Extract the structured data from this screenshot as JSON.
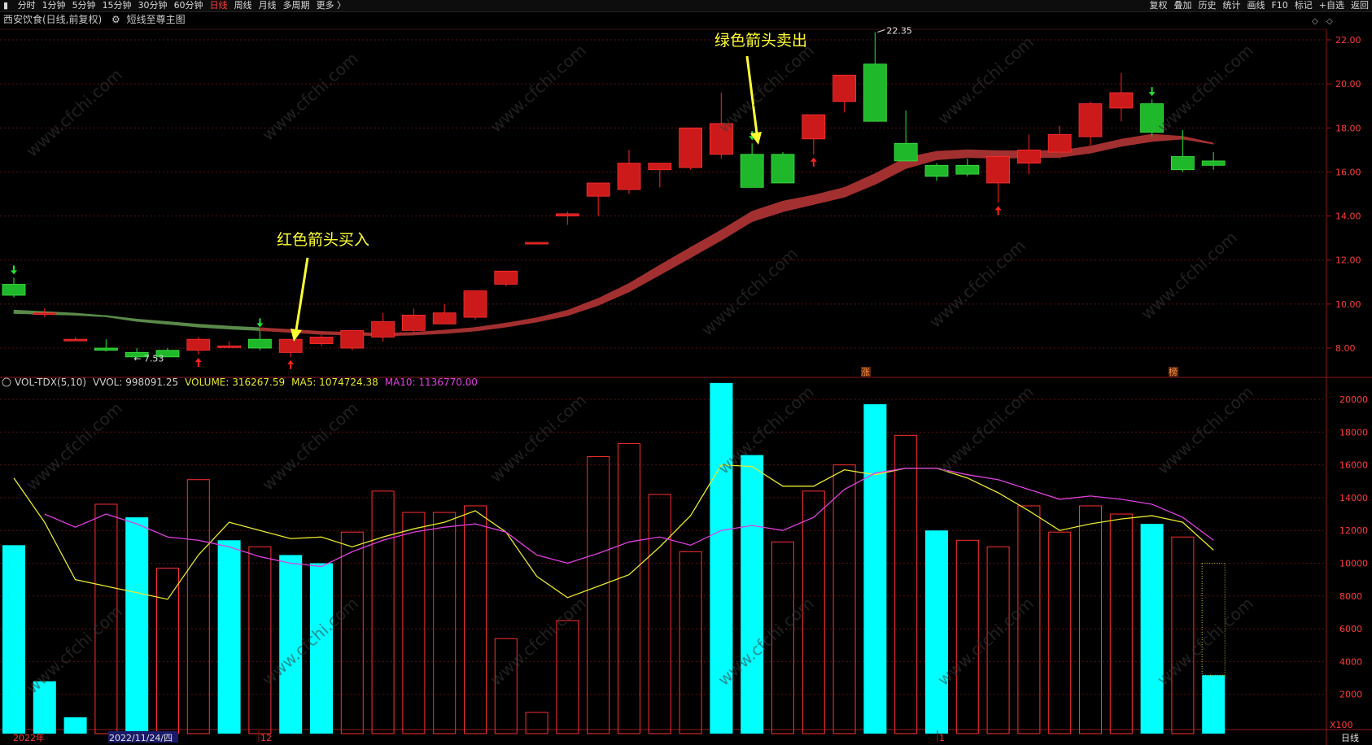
{
  "topbar": {
    "left_items": [
      "分时",
      "1分钟",
      "5分钟",
      "15分钟",
      "30分钟",
      "60分钟",
      "日线",
      "周线",
      "月线",
      "多周期",
      "更多 〉"
    ],
    "active": "日线",
    "right_items": [
      "复权",
      "叠加",
      "历史",
      "统计",
      "画线",
      "F10",
      "标记",
      "+自选",
      "返回"
    ]
  },
  "header": {
    "stock": "西安饮食(日线,前复权)",
    "indicator": "短线至尊主图"
  },
  "volume_header": {
    "name": "VOL-TDX(5,10)",
    "vvol": "VVOL: 998091.25",
    "volume": "VOLUME: 316267.59",
    "ma5": "MA5: 1074724.38",
    "ma10": "MA10: 1136770.00"
  },
  "annotations": {
    "sell": "绿色箭头卖出",
    "buy": "红色箭头买入",
    "high": "22.35",
    "low": "7.53",
    "zhang": "涨",
    "bang": "榜",
    "watermark": "www.cfchi.com"
  },
  "bottom": {
    "year": "2022年",
    "date": "2022/11/24/四",
    "month12": "12",
    "month1": "1",
    "x100": "X100",
    "period": "日线"
  },
  "colors": {
    "up": "#ff2a2a",
    "down": "#22c830",
    "vol_down": "#00ffff",
    "ma5": "#e8e830",
    "ma10": "#e040e0",
    "annotation": "#ffff33"
  },
  "chart_data": [
    {
      "type": "candlestick",
      "title": "西安饮食(日线,前复权)",
      "ylim": [
        7.0,
        22.6
      ],
      "y_ticks": [
        8.0,
        10.0,
        12.0,
        14.0,
        16.0,
        18.0,
        20.0,
        22.0
      ],
      "candles": [
        {
          "o": 10.9,
          "h": 11.2,
          "l": 10.3,
          "c": 10.4
        },
        {
          "o": 9.6,
          "h": 9.8,
          "l": 9.4,
          "c": 9.6
        },
        {
          "o": 8.4,
          "h": 8.5,
          "l": 8.35,
          "c": 8.4
        },
        {
          "o": 8.0,
          "h": 8.4,
          "l": 7.85,
          "c": 7.9
        },
        {
          "o": 7.8,
          "h": 8.0,
          "l": 7.53,
          "c": 7.6
        },
        {
          "o": 7.9,
          "h": 8.0,
          "l": 7.6,
          "c": 7.6
        },
        {
          "o": 7.9,
          "h": 8.5,
          "l": 7.7,
          "c": 8.4
        },
        {
          "o": 8.1,
          "h": 8.3,
          "l": 8.0,
          "c": 8.1
        },
        {
          "o": 8.4,
          "h": 8.8,
          "l": 7.9,
          "c": 8.0
        },
        {
          "o": 7.8,
          "h": 8.4,
          "l": 7.6,
          "c": 8.4
        },
        {
          "o": 8.2,
          "h": 8.6,
          "l": 8.1,
          "c": 8.5
        },
        {
          "o": 8.0,
          "h": 8.8,
          "l": 7.9,
          "c": 8.8
        },
        {
          "o": 8.5,
          "h": 9.6,
          "l": 8.3,
          "c": 9.2
        },
        {
          "o": 8.8,
          "h": 9.8,
          "l": 8.7,
          "c": 9.5
        },
        {
          "o": 9.1,
          "h": 10.0,
          "l": 9.1,
          "c": 9.6
        },
        {
          "o": 9.4,
          "h": 10.6,
          "l": 9.3,
          "c": 10.6
        },
        {
          "o": 10.9,
          "h": 11.5,
          "l": 10.8,
          "c": 11.5
        },
        {
          "o": 12.8,
          "h": 12.8,
          "l": 12.8,
          "c": 12.8
        },
        {
          "o": 14.0,
          "h": 14.2,
          "l": 13.6,
          "c": 14.1
        },
        {
          "o": 14.9,
          "h": 15.5,
          "l": 14.0,
          "c": 15.5
        },
        {
          "o": 15.2,
          "h": 17.0,
          "l": 15.0,
          "c": 16.4
        },
        {
          "o": 16.1,
          "h": 16.4,
          "l": 15.3,
          "c": 16.4
        },
        {
          "o": 16.2,
          "h": 18.0,
          "l": 16.1,
          "c": 18.0
        },
        {
          "o": 16.8,
          "h": 19.6,
          "l": 16.6,
          "c": 18.2
        },
        {
          "o": 16.8,
          "h": 17.3,
          "l": 15.3,
          "c": 15.3
        },
        {
          "o": 16.8,
          "h": 16.9,
          "l": 15.5,
          "c": 15.5
        },
        {
          "o": 17.5,
          "h": 18.6,
          "l": 16.8,
          "c": 18.6
        },
        {
          "o": 19.2,
          "h": 20.4,
          "l": 18.7,
          "c": 20.4
        },
        {
          "o": 20.9,
          "h": 22.35,
          "l": 18.3,
          "c": 18.3
        },
        {
          "o": 17.3,
          "h": 18.8,
          "l": 16.5,
          "c": 16.5
        },
        {
          "o": 16.3,
          "h": 16.4,
          "l": 15.6,
          "c": 15.8
        },
        {
          "o": 16.3,
          "h": 16.6,
          "l": 15.8,
          "c": 15.9
        },
        {
          "o": 15.5,
          "h": 16.8,
          "l": 14.6,
          "c": 16.7
        },
        {
          "o": 16.4,
          "h": 17.7,
          "l": 15.9,
          "c": 17.0
        },
        {
          "o": 16.9,
          "h": 18.1,
          "l": 16.6,
          "c": 17.7
        },
        {
          "o": 17.6,
          "h": 19.2,
          "l": 17.2,
          "c": 19.1
        },
        {
          "o": 18.9,
          "h": 20.5,
          "l": 18.3,
          "c": 19.6
        },
        {
          "o": 19.1,
          "h": 19.3,
          "l": 17.6,
          "c": 17.8
        },
        {
          "o": 16.7,
          "h": 17.9,
          "l": 16.0,
          "c": 16.1
        },
        {
          "o": 16.5,
          "h": 16.9,
          "l": 16.1,
          "c": 16.3
        }
      ],
      "band_top": [
        9.73,
        9.66,
        9.59,
        9.48,
        9.32,
        9.21,
        9.09,
        9.0,
        8.93,
        8.85,
        8.76,
        8.72,
        8.68,
        8.72,
        8.82,
        8.94,
        9.14,
        9.38,
        9.72,
        10.26,
        10.94,
        11.77,
        12.58,
        13.37,
        14.22,
        14.68,
        14.95,
        15.3,
        15.93,
        16.66,
        16.94,
        17.01,
        16.97,
        16.97,
        16.97,
        17.18,
        17.49,
        17.72,
        17.62,
        17.32
      ],
      "band_bottom": [
        9.57,
        9.53,
        9.49,
        9.42,
        9.21,
        9.08,
        8.95,
        8.86,
        8.79,
        8.71,
        8.62,
        8.59,
        8.55,
        8.59,
        8.66,
        8.77,
        8.95,
        9.18,
        9.47,
        9.94,
        10.55,
        11.32,
        12.1,
        12.89,
        13.74,
        14.19,
        14.52,
        14.85,
        15.43,
        16.15,
        16.55,
        16.65,
        16.62,
        16.64,
        16.66,
        16.85,
        17.16,
        17.38,
        17.49,
        17.26
      ],
      "buy_signals": [
        6,
        9,
        26,
        32
      ],
      "sell_signals": [
        0,
        8,
        24,
        37
      ],
      "annotations": [
        "红色箭头买入",
        "绿色箭头卖出"
      ]
    },
    {
      "type": "bar",
      "title": "VOL-TDX(5,10)",
      "ylim": [
        0,
        21000
      ],
      "y_ticks": [
        2000,
        4000,
        6000,
        8000,
        10000,
        12000,
        14000,
        16000,
        18000,
        20000
      ],
      "unit": "X100",
      "series": [
        {
          "name": "VOLUME",
          "values": [
            11100,
            2800,
            600,
            13600,
            12800,
            9700,
            15100,
            11400,
            11000,
            10500,
            10000,
            11900,
            14400,
            13100,
            13100,
            13500,
            5400,
            900,
            6500,
            16500,
            17300,
            14200,
            10700,
            21000,
            16600,
            11300,
            14400,
            16000,
            19700,
            17800,
            12000,
            11400,
            11000,
            13500,
            11900,
            13500,
            13000,
            12400,
            11600,
            3163
          ],
          "down": [
            0,
            1,
            2,
            4,
            7,
            9,
            10,
            23,
            24,
            28,
            30,
            37,
            39
          ]
        },
        {
          "name": "MA5",
          "values": [
            15200,
            12500,
            9000,
            8600,
            8200,
            7800,
            10500,
            12500,
            12000,
            11500,
            11600,
            11000,
            11600,
            12100,
            12500,
            13200,
            11900,
            9200,
            7900,
            8600,
            9300,
            11000,
            12900,
            16000,
            15900,
            14700,
            14700,
            15700,
            15400,
            15800,
            15800,
            15200,
            14300,
            13200,
            12000,
            12400,
            12700,
            12900,
            12500,
            10800
          ]
        },
        {
          "name": "MA10",
          "values": [
            null,
            13000,
            12200,
            13000,
            12400,
            11600,
            11400,
            11000,
            10400,
            10000,
            9800,
            10700,
            11400,
            11900,
            12200,
            12400,
            11900,
            10500,
            10000,
            10600,
            11300,
            11600,
            11100,
            12000,
            12300,
            12000,
            12800,
            14500,
            15500,
            15800,
            15800,
            15400,
            15100,
            14500,
            13900,
            14100,
            13900,
            13600,
            12800,
            11400
          ]
        }
      ]
    }
  ]
}
